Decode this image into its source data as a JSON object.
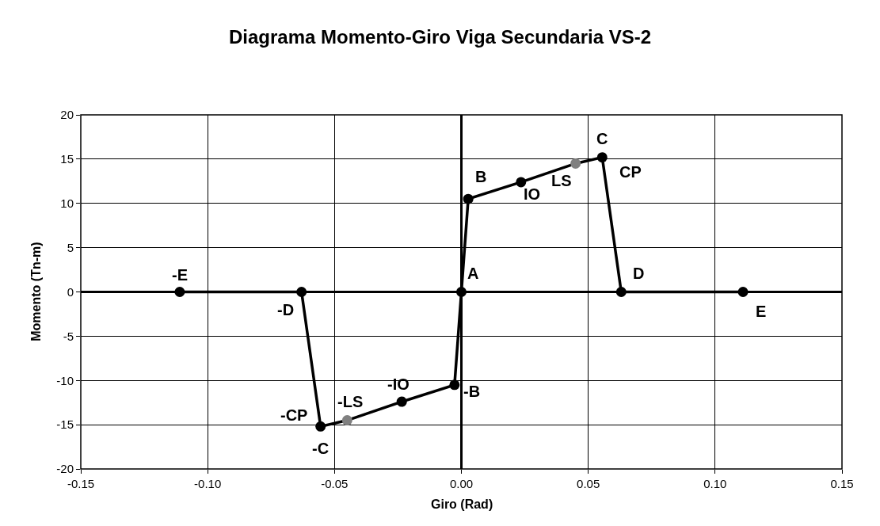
{
  "chart_data": {
    "type": "line",
    "title": "Diagrama Momento-Giro Viga Secundaria VS-2",
    "xlabel": "Giro (Rad)",
    "ylabel": "Momento (Tn-m)",
    "x": [
      -0.111,
      -0.063,
      -0.0555,
      -0.045,
      -0.0235,
      -0.0027,
      0,
      0.0027,
      0.0235,
      0.045,
      0.0555,
      0.063,
      0.111
    ],
    "series": [
      {
        "color": "#000000",
        "colors": [
          "#000000",
          "#000000",
          "#000000",
          "#808080",
          "#000000",
          "#000000",
          "#000000",
          "#000000",
          "#000000",
          "#808080",
          "#000000",
          "#000000",
          "#000000"
        ],
        "values": [
          0,
          0,
          -15.2,
          -14.5,
          -12.4,
          -10.5,
          0,
          10.5,
          12.4,
          14.5,
          15.2,
          0,
          0
        ]
      }
    ],
    "marker": "circle",
    "line_style": "solid",
    "grid": true,
    "xlim": [
      -0.15,
      0.15
    ],
    "ylim": [
      -20,
      20
    ],
    "xticks": [
      {
        "value": -0.15,
        "label": "-0.15"
      },
      {
        "value": -0.1,
        "label": "-0.10"
      },
      {
        "value": -0.05,
        "label": "-0.05"
      },
      {
        "value": 0,
        "label": "0.00"
      },
      {
        "value": 0.05,
        "label": "0.05"
      },
      {
        "value": 0.1,
        "label": "0.10"
      },
      {
        "value": 0.15,
        "label": "0.15"
      }
    ],
    "yticks": [
      -20,
      -15,
      -10,
      -5,
      0,
      5,
      10,
      15,
      20
    ],
    "annotations": [
      {
        "text": "-E",
        "x": -0.111,
        "y": 0
      },
      {
        "text": "-D",
        "x": -0.063,
        "y": 0
      },
      {
        "text": "-CP",
        "x": -0.0555,
        "y": -15.2
      },
      {
        "text": "-C",
        "x": -0.0555,
        "y": -15.2
      },
      {
        "text": "-LS",
        "x": -0.045,
        "y": -14.5
      },
      {
        "text": "-IO",
        "x": -0.0235,
        "y": -12.4
      },
      {
        "text": "-B",
        "x": -0.0027,
        "y": -10.5
      },
      {
        "text": "A",
        "x": 0,
        "y": 0
      },
      {
        "text": "B",
        "x": 0.0027,
        "y": 10.5
      },
      {
        "text": "IO",
        "x": 0.0235,
        "y": 12.4
      },
      {
        "text": "LS",
        "x": 0.045,
        "y": 14.5
      },
      {
        "text": "C",
        "x": 0.0555,
        "y": 15.2
      },
      {
        "text": "CP",
        "x": 0.0555,
        "y": 15.2
      },
      {
        "text": "D",
        "x": 0.063,
        "y": 0
      },
      {
        "text": "E",
        "x": 0.111,
        "y": 0
      }
    ]
  }
}
